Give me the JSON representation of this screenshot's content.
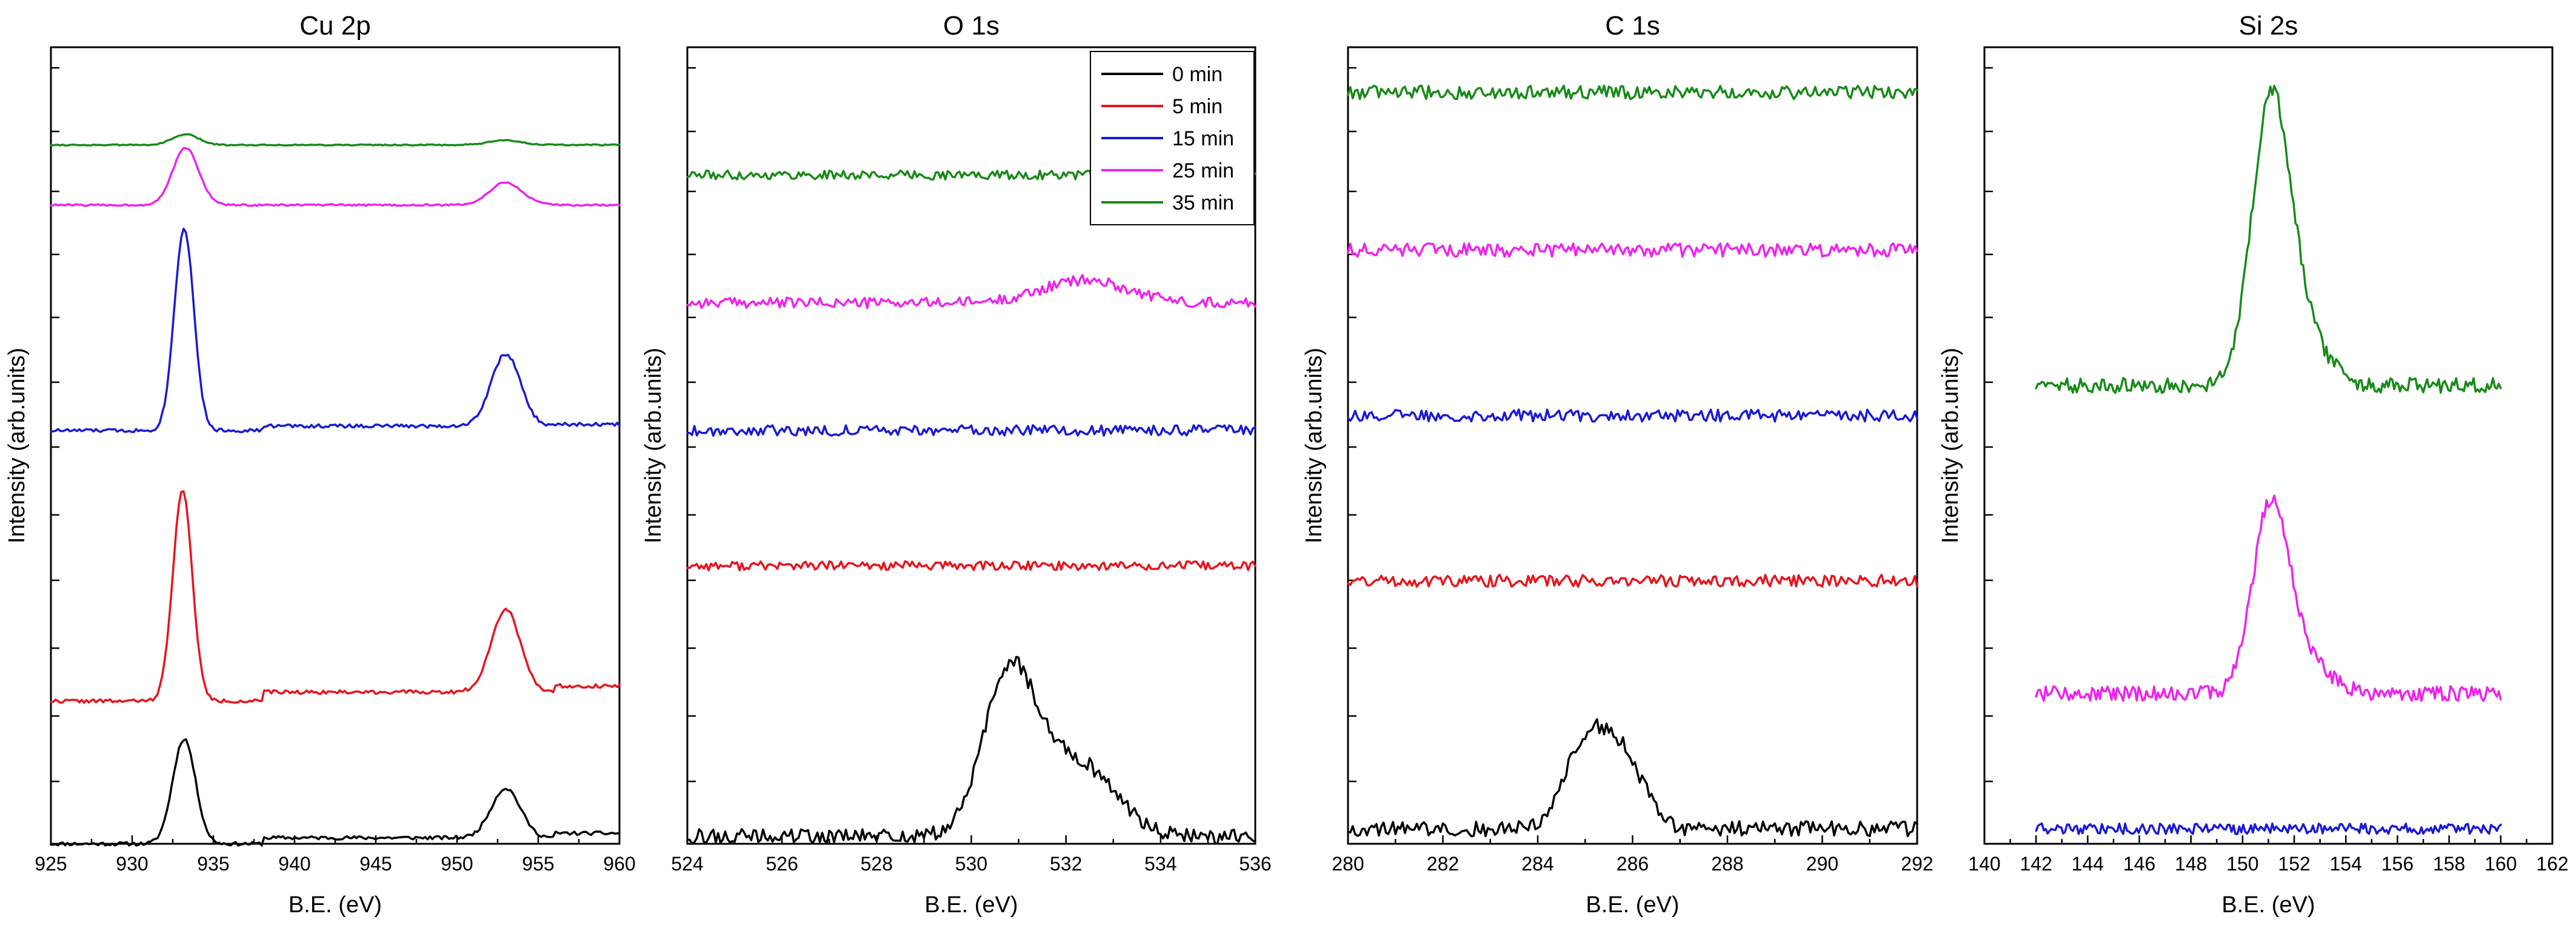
{
  "chart_data": [
    {
      "type": "line",
      "title": "Cu 2p",
      "xlabel": "B.E. (eV)",
      "ylabel": "Intensity (arb.units)",
      "xlim": [
        925,
        960
      ],
      "ylim": [
        0,
        5.3
      ],
      "xticks": [
        925,
        930,
        935,
        940,
        945,
        950,
        955,
        960
      ],
      "x_range": [
        925,
        960
      ],
      "series": [
        {
          "name": "0 min",
          "color": "#000000",
          "baseline": 0.0,
          "noise": 0.012,
          "seed": 11,
          "peaks": [
            {
              "center": 933.2,
              "height": 0.7,
              "width": 0.7
            },
            {
              "center": 953.0,
              "height": 0.33,
              "width": 0.9
            }
          ],
          "steps": [
            {
              "at": 938,
              "height": 0.04
            },
            {
              "at": 956,
              "height": 0.03
            }
          ]
        },
        {
          "name": "5 min",
          "color": "#e8141c",
          "baseline": 0.95,
          "noise": 0.012,
          "seed": 22,
          "peaks": [
            {
              "center": 933.1,
              "height": 1.4,
              "width": 0.6
            },
            {
              "center": 953.0,
              "height": 0.55,
              "width": 0.9
            }
          ],
          "steps": [
            {
              "at": 938,
              "height": 0.06
            },
            {
              "at": 956,
              "height": 0.04
            }
          ]
        },
        {
          "name": "15 min",
          "color": "#1a1ad6",
          "baseline": 2.75,
          "noise": 0.012,
          "seed": 33,
          "peaks": [
            {
              "center": 933.2,
              "height": 1.35,
              "width": 0.6
            },
            {
              "center": 953.0,
              "height": 0.48,
              "width": 0.9
            }
          ],
          "steps": [
            {
              "at": 938,
              "height": 0.03
            },
            {
              "at": 956,
              "height": 0.01
            }
          ]
        },
        {
          "name": "25 min",
          "color": "#ee22ee",
          "baseline": 4.25,
          "noise": 0.006,
          "seed": 44,
          "peaks": [
            {
              "center": 933.3,
              "height": 0.38,
              "width": 0.8
            },
            {
              "center": 953.0,
              "height": 0.15,
              "width": 1.0
            }
          ],
          "steps": []
        },
        {
          "name": "35 min",
          "color": "#188a18",
          "baseline": 4.65,
          "noise": 0.004,
          "seed": 55,
          "peaks": [
            {
              "center": 933.3,
              "height": 0.07,
              "width": 0.8
            },
            {
              "center": 953.0,
              "height": 0.03,
              "width": 1.0
            }
          ],
          "steps": []
        }
      ]
    },
    {
      "type": "line",
      "title": "O 1s",
      "xlabel": "B.E. (eV)",
      "ylabel": "Intensity (arb.units)",
      "xlim": [
        524,
        536
      ],
      "ylim": [
        0,
        5.3
      ],
      "xticks": [
        524,
        526,
        528,
        530,
        532,
        534,
        536
      ],
      "x_range": [
        524,
        536
      ],
      "legend": {
        "position": "top-right",
        "entries": [
          "0 min",
          "5 min",
          "15 min",
          "25 min",
          "35 min"
        ]
      },
      "series": [
        {
          "name": "0 min",
          "color": "#000000",
          "baseline": 0.05,
          "noise": 0.05,
          "seed": 66,
          "peaks": [
            {
              "center": 530.8,
              "height": 1.05,
              "width": 0.55
            },
            {
              "center": 532.2,
              "height": 0.5,
              "width": 0.8
            }
          ],
          "steps": []
        },
        {
          "name": "5 min",
          "color": "#e8141c",
          "baseline": 1.85,
          "noise": 0.03,
          "seed": 77,
          "peaks": [],
          "steps": []
        },
        {
          "name": "15 min",
          "color": "#1a1ad6",
          "baseline": 2.75,
          "noise": 0.035,
          "seed": 88,
          "peaks": [],
          "steps": []
        },
        {
          "name": "25 min",
          "color": "#ee22ee",
          "baseline": 3.6,
          "noise": 0.035,
          "seed": 99,
          "peaks": [
            {
              "center": 532.4,
              "height": 0.15,
              "width": 0.9
            }
          ],
          "steps": []
        },
        {
          "name": "35 min",
          "color": "#188a18",
          "baseline": 4.45,
          "noise": 0.03,
          "seed": 111,
          "peaks": [],
          "steps": []
        }
      ]
    },
    {
      "type": "line",
      "title": "C 1s",
      "xlabel": "B.E. (eV)",
      "ylabel": "Intensity (arb.units)",
      "xlim": [
        280,
        292
      ],
      "ylim": [
        0,
        5.3
      ],
      "xticks": [
        280,
        282,
        284,
        286,
        288,
        290,
        292
      ],
      "x_range": [
        280,
        292
      ],
      "series": [
        {
          "name": "0 min",
          "color": "#000000",
          "baseline": 0.1,
          "noise": 0.05,
          "seed": 121,
          "peaks": [
            {
              "center": 285.0,
              "height": 0.55,
              "width": 0.45
            },
            {
              "center": 285.8,
              "height": 0.45,
              "width": 0.45
            }
          ],
          "steps": []
        },
        {
          "name": "5 min",
          "color": "#e8141c",
          "baseline": 1.75,
          "noise": 0.04,
          "seed": 131,
          "peaks": [],
          "steps": []
        },
        {
          "name": "15 min",
          "color": "#1a1ad6",
          "baseline": 2.85,
          "noise": 0.04,
          "seed": 141,
          "peaks": [],
          "steps": []
        },
        {
          "name": "25 min",
          "color": "#ee22ee",
          "baseline": 3.95,
          "noise": 0.045,
          "seed": 151,
          "peaks": [],
          "steps": []
        },
        {
          "name": "35 min",
          "color": "#188a18",
          "baseline": 5.0,
          "noise": 0.045,
          "seed": 161,
          "peaks": [],
          "steps": []
        }
      ]
    },
    {
      "type": "line",
      "title": "Si 2s",
      "xlabel": "B.E. (eV)",
      "ylabel": "Intensity (arb.units)",
      "xlim": [
        140,
        162
      ],
      "ylim": [
        0,
        5.3
      ],
      "xticks": [
        140,
        142,
        144,
        146,
        148,
        150,
        152,
        154,
        156,
        158,
        160,
        162
      ],
      "x_range": [
        142,
        160
      ],
      "series": [
        {
          "name": "15 min",
          "color": "#1a1ad6",
          "baseline": 0.1,
          "noise": 0.035,
          "seed": 171,
          "peaks": [],
          "steps": []
        },
        {
          "name": "25 min",
          "color": "#ee22ee",
          "baseline": 1.0,
          "noise": 0.05,
          "seed": 181,
          "peaks": [
            {
              "center": 151.1,
              "height": 1.25,
              "width": 0.7
            },
            {
              "center": 152.5,
              "height": 0.2,
              "width": 0.9
            }
          ],
          "steps": []
        },
        {
          "name": "35 min",
          "color": "#188a18",
          "baseline": 3.05,
          "noise": 0.05,
          "seed": 191,
          "peaks": [
            {
              "center": 151.1,
              "height": 1.85,
              "width": 0.75
            },
            {
              "center": 152.4,
              "height": 0.3,
              "width": 0.9
            }
          ],
          "steps": []
        }
      ]
    }
  ]
}
